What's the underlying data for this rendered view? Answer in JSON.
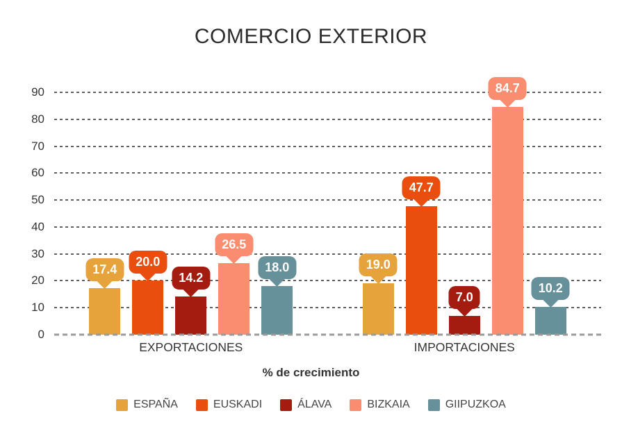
{
  "chart_data": {
    "type": "bar",
    "title": "COMERCIO EXTERIOR",
    "xlabel": "% de crecimiento",
    "ylabel": "",
    "ylim": [
      0,
      90
    ],
    "ytick_step": 10,
    "grid": "dashed-horizontal",
    "legend_position": "bottom",
    "value_label_style": "colored-bubble-with-pointer",
    "categories": [
      "EXPORTACIONES",
      "IMPORTACIONES"
    ],
    "series": [
      {
        "name": "ESPAÑA",
        "color": "#E6A33C",
        "values": [
          17.4,
          19.0
        ]
      },
      {
        "name": "EUSKADI",
        "color": "#E94E0E",
        "values": [
          20.0,
          47.7
        ]
      },
      {
        "name": "ÁLAVA",
        "color": "#A31C0F",
        "values": [
          14.2,
          7.0
        ]
      },
      {
        "name": "BIZKAIA",
        "color": "#FA8D70",
        "values": [
          26.5,
          84.7
        ]
      },
      {
        "name": "GIIPUZKOA",
        "color": "#66909A",
        "values": [
          18.0,
          10.2
        ]
      }
    ]
  }
}
